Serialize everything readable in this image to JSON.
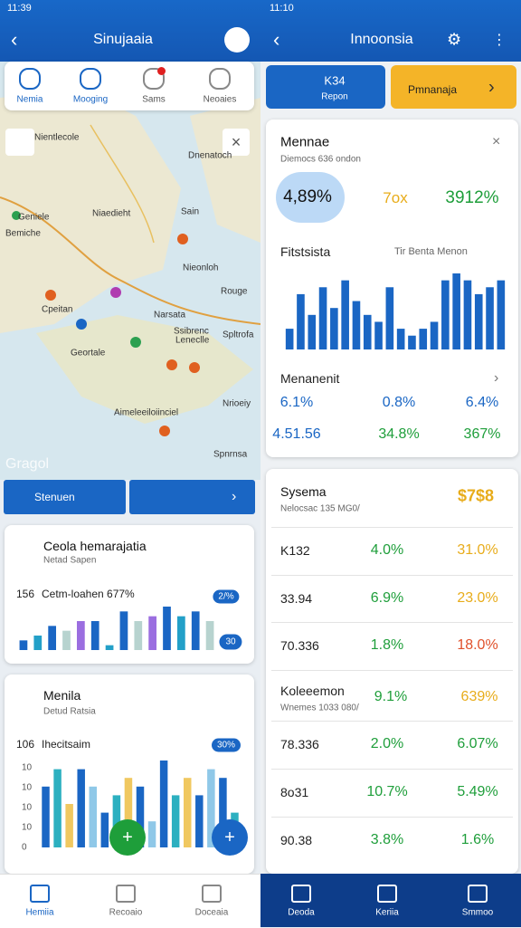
{
  "left": {
    "status_time": "11:39",
    "title": "Sinujaaia",
    "tabs": [
      "Nemia",
      "Mooging",
      "Sams",
      "Neoaies"
    ],
    "map_labels": [
      "Nientlecole",
      "Geniele",
      "Bemiche",
      "Niaedieht",
      "Dnenatoch",
      "Sain",
      "Nieonloh",
      "Rouge",
      "Cpeitan",
      "Narsata",
      "Ssibrenc",
      "Spltrofa",
      "Geortale",
      "Leneclle",
      "Nrioeiy",
      "Aimeleeiloiinciel",
      "Spnrnsa"
    ],
    "map_brand": "Gragol",
    "action_button": "Stenuen",
    "card1": {
      "title": "Ceola hemarajatia",
      "subtitle": "Netad Sapen",
      "metric": "156",
      "metric_label": "Cetm-loahen 677%",
      "badges": [
        "2/%",
        "30"
      ],
      "bars": [
        2,
        3,
        5,
        4,
        6,
        6,
        1,
        8,
        6,
        7,
        9,
        7,
        8,
        6
      ],
      "bar_colors": [
        "#1a66c4",
        "#23a0c8",
        "#1a66c4",
        "#b7d3cf",
        "#9b6ee0"
      ]
    },
    "card2": {
      "title": "Menila",
      "subtitle": "Detud Ratsia",
      "metric": "106",
      "metric_label": "Ihecitsaim",
      "badge": "30%",
      "axis_labels": [
        "10",
        "10",
        "10",
        "10",
        "0"
      ],
      "bars": [
        7,
        9,
        5,
        9,
        7,
        4,
        6,
        8,
        7,
        3,
        10,
        6,
        8,
        6,
        9,
        8,
        4
      ],
      "bar_colors": [
        "#1a66c4",
        "#2cb0c0",
        "#f0c860",
        "#1a66c4",
        "#8fc8e8"
      ]
    },
    "nav": [
      "Hemiia",
      "Recoaio",
      "Doceaia"
    ]
  },
  "right": {
    "status_time": "11:10",
    "title": "Innoonsia",
    "button_primary": [
      "K34",
      "Repon"
    ],
    "button_secondary": "Pmnanaja",
    "summary": {
      "title": "Mennae",
      "subtitle": "Diemocs 636 ondon",
      "stats": [
        "4,89%",
        "7ox",
        "3912%"
      ],
      "chart_title": "Fitstsista",
      "chart_note": "Tir Benta Menon",
      "bars": [
        3,
        8,
        5,
        9,
        6,
        10,
        7,
        5,
        4,
        9,
        3,
        2,
        3,
        4,
        10,
        11,
        10,
        8,
        9,
        10
      ],
      "section": "Menanenit",
      "rows": [
        [
          "6.1%",
          "0.8%",
          "6.4%"
        ],
        [
          "4.51.56",
          "34.8%",
          "367%"
        ]
      ]
    },
    "table": {
      "title": "Sysema",
      "badge": "$7$8",
      "subtitle": "Nelocsac 135 MG0/",
      "rows": [
        [
          "K132",
          "4.0%",
          "31.0%"
        ],
        [
          "33.94",
          "6.9%",
          "23.0%"
        ],
        [
          "70.336",
          "1.8%",
          "18.0%"
        ]
      ],
      "group_title": "Koleeemon",
      "group_values": [
        "9.1%",
        "639%"
      ],
      "group_subtitle": "Wnemes 1033 080/",
      "group_rows": [
        [
          "78.336",
          "2.0%",
          "6.07%"
        ],
        [
          "8o31",
          "10.7%",
          "5.49%"
        ],
        [
          "90.38",
          "3.8%",
          "1.6%"
        ]
      ]
    },
    "nav": [
      "Deoda",
      "Keriia",
      "Smmoo"
    ]
  }
}
